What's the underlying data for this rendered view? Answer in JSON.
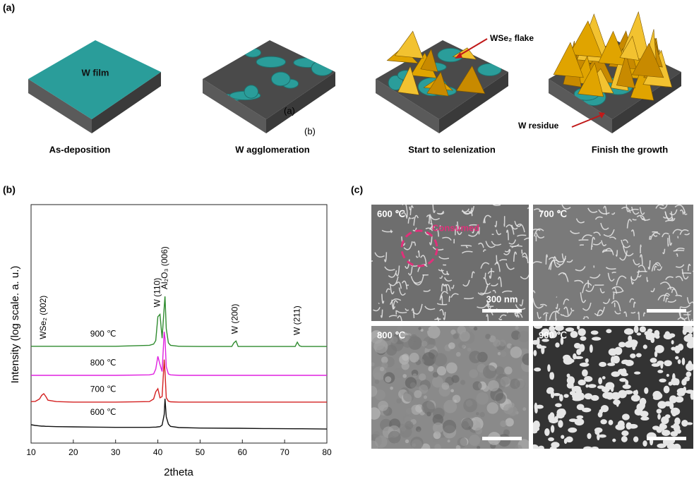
{
  "panel_a": {
    "label": "(a)",
    "stages": [
      {
        "caption": "As-deposition",
        "note": "W film"
      },
      {
        "caption": "W agglomeration"
      },
      {
        "caption": "Start to selenization",
        "note": "WSe₂ flake"
      },
      {
        "caption": "Finish the growth",
        "note": "W residue"
      }
    ],
    "stray_labels": [
      "(a)",
      "(b)"
    ]
  },
  "chart_data": {
    "type": "line",
    "label": "(b)",
    "xlabel": "2theta",
    "ylabel": "Intensity (log scale. a. u.)",
    "xlim": [
      10,
      80
    ],
    "xticks": [
      10,
      20,
      30,
      40,
      50,
      60,
      70,
      80
    ],
    "ylim": [
      0,
      100
    ],
    "x": [
      10,
      11,
      12,
      12.5,
      13,
      13.5,
      14,
      16,
      20,
      30,
      38,
      39,
      39.5,
      40,
      40.5,
      41,
      41.5,
      41.7,
      42,
      42.5,
      43,
      45,
      50,
      57.5,
      58,
      58.5,
      59,
      65,
      72.5,
      73,
      73.5,
      74,
      80
    ],
    "series": [
      {
        "name": "900 ℃",
        "color": "#2e8b2e",
        "values": [
          40.6,
          40.6,
          40.6,
          40.6,
          40.6,
          40.6,
          40.6,
          40.6,
          40.6,
          40.6,
          41,
          41.5,
          43,
          53,
          54,
          44,
          57,
          61.5,
          48,
          42,
          41,
          40.6,
          40.5,
          40.5,
          42,
          42.8,
          40.5,
          40.5,
          40.5,
          42.3,
          40.8,
          40.5,
          40.5
        ]
      },
      {
        "name": "800 ℃",
        "color": "#e020e0",
        "values": [
          28.4,
          28.4,
          28.4,
          28.4,
          28.4,
          28.4,
          28.4,
          28.4,
          28.4,
          28.4,
          28.6,
          29,
          31,
          36.4,
          33,
          30,
          46.7,
          44,
          32,
          29,
          28.6,
          28.4,
          28.4,
          28.4,
          28.4,
          28.4,
          28.4,
          28.4,
          28.4,
          28.4,
          28.4,
          28.4,
          28.4
        ]
      },
      {
        "name": "700 ℃",
        "color": "#d42020",
        "values": [
          17.4,
          17.5,
          18.5,
          20,
          20.7,
          19.5,
          18,
          17.4,
          17.2,
          17.2,
          17.4,
          18.5,
          21.5,
          22.8,
          19,
          19.5,
          35,
          30,
          19,
          17.6,
          17.3,
          17.2,
          17.2,
          17.2,
          17.2,
          17.2,
          17.2,
          17.2,
          17.2,
          17.2,
          17.2,
          17.2,
          17.2
        ]
      },
      {
        "name": "600 ℃",
        "color": "#111111",
        "values": [
          7.7,
          7.4,
          7.2,
          7.1,
          7.1,
          7.0,
          7.0,
          6.9,
          6.8,
          6.6,
          6.6,
          6.7,
          6.7,
          6.8,
          6.9,
          7.5,
          12,
          18.6,
          11,
          8,
          7,
          6.5,
          6.3,
          6.2,
          6.2,
          6.2,
          6.2,
          6.1,
          6.0,
          6.0,
          6.0,
          6.0,
          5.9
        ]
      }
    ],
    "annotations": [
      {
        "text": "WSe₂ (002)",
        "x": 13
      },
      {
        "text": "W (110)",
        "x": 40
      },
      {
        "text": "Al₂O₃ (006)",
        "x": 41.7
      },
      {
        "text": "W (200)",
        "x": 58.3
      },
      {
        "text": "W (211)",
        "x": 73
      }
    ]
  },
  "panel_c": {
    "label": "(c)",
    "images": [
      {
        "temperature": "600 ℃",
        "scale_bar": "300 nm",
        "annotation": "Consumed"
      },
      {
        "temperature": "700 ℃"
      },
      {
        "temperature": "800 ℃"
      },
      {
        "temperature": "900 ℃"
      }
    ]
  }
}
